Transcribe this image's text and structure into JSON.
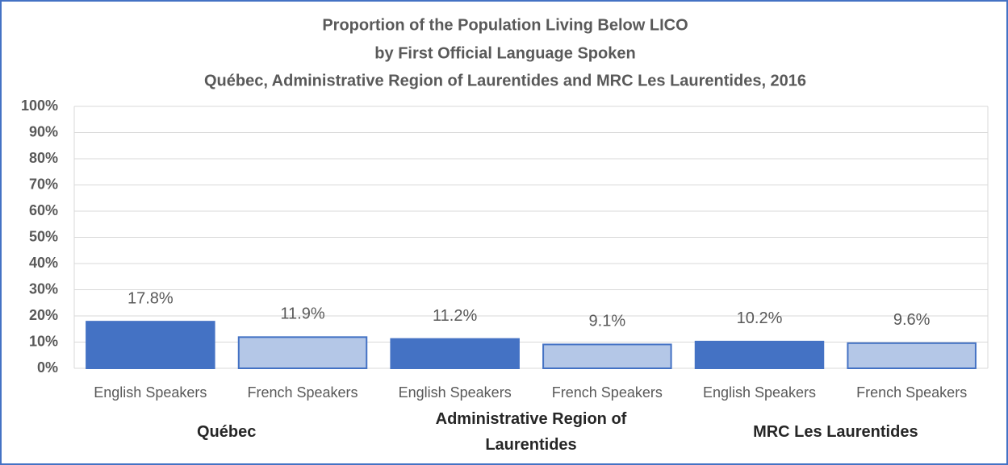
{
  "chart_data": {
    "type": "bar",
    "title": [
      "Proportion of the Population Living Below LICO",
      "by First Official Language Spoken",
      "Québec, Administrative Region of Laurentides and MRC Les Laurentides, 2016"
    ],
    "categories": [
      "English Speakers",
      "French Speakers",
      "English Speakers",
      "French Speakers",
      "English Speakers",
      "French Speakers"
    ],
    "groups": [
      "Québec",
      "Administrative Region of Laurentides",
      "MRC Les Laurentides"
    ],
    "values": [
      17.8,
      11.9,
      11.2,
      9.1,
      10.2,
      9.6
    ],
    "value_labels": [
      "17.8%",
      "11.9%",
      "11.2%",
      "9.1%",
      "10.2%",
      "9.6%"
    ],
    "colors": [
      "#4472c4",
      "#b4c7e7",
      "#4472c4",
      "#b4c7e7",
      "#4472c4",
      "#b4c7e7"
    ],
    "edgecolor": "#4472c4",
    "ylim": [
      0,
      100
    ],
    "yticks": [
      {
        "value": 0,
        "label": "0%"
      },
      {
        "value": 10,
        "label": "10%"
      },
      {
        "value": 20,
        "label": "20%"
      },
      {
        "value": 30,
        "label": "30%"
      },
      {
        "value": 40,
        "label": "40%"
      },
      {
        "value": 50,
        "label": "50%"
      },
      {
        "value": 60,
        "label": "60%"
      },
      {
        "value": 70,
        "label": "70%"
      },
      {
        "value": 80,
        "label": "80%"
      },
      {
        "value": 90,
        "label": "90%"
      },
      {
        "value": 100,
        "label": "100%"
      }
    ],
    "grid": true
  }
}
